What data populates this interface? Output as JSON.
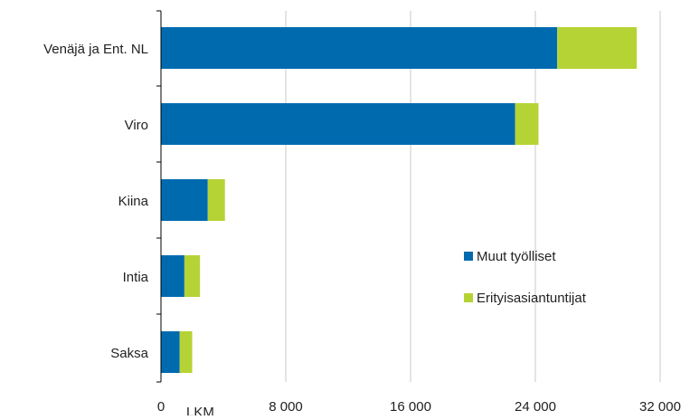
{
  "chart_data": {
    "type": "bar",
    "orientation": "horizontal",
    "stacked": true,
    "categories": [
      "Venäjä ja Ent. NL",
      "Viro",
      "Kiina",
      "Intia",
      "Saksa"
    ],
    "series": [
      {
        "name": "Muut työlliset",
        "color": "#006aaf",
        "values": [
          25400,
          22700,
          3000,
          1500,
          1200
        ]
      },
      {
        "name": "Erityisasiantuntijat",
        "color": "#b5d334",
        "values": [
          5100,
          1500,
          1100,
          1000,
          800
        ]
      }
    ],
    "xlim": [
      0,
      32000
    ],
    "x_ticks": [
      0,
      8000,
      16000,
      24000,
      32000
    ],
    "x_tick_labels": [
      "0",
      "8 000",
      "16 000",
      "24 000",
      "32 000"
    ],
    "xlabel": "LKM",
    "ylabel": "",
    "title": "",
    "grid": "vertical",
    "legend_position": "right-lower"
  }
}
